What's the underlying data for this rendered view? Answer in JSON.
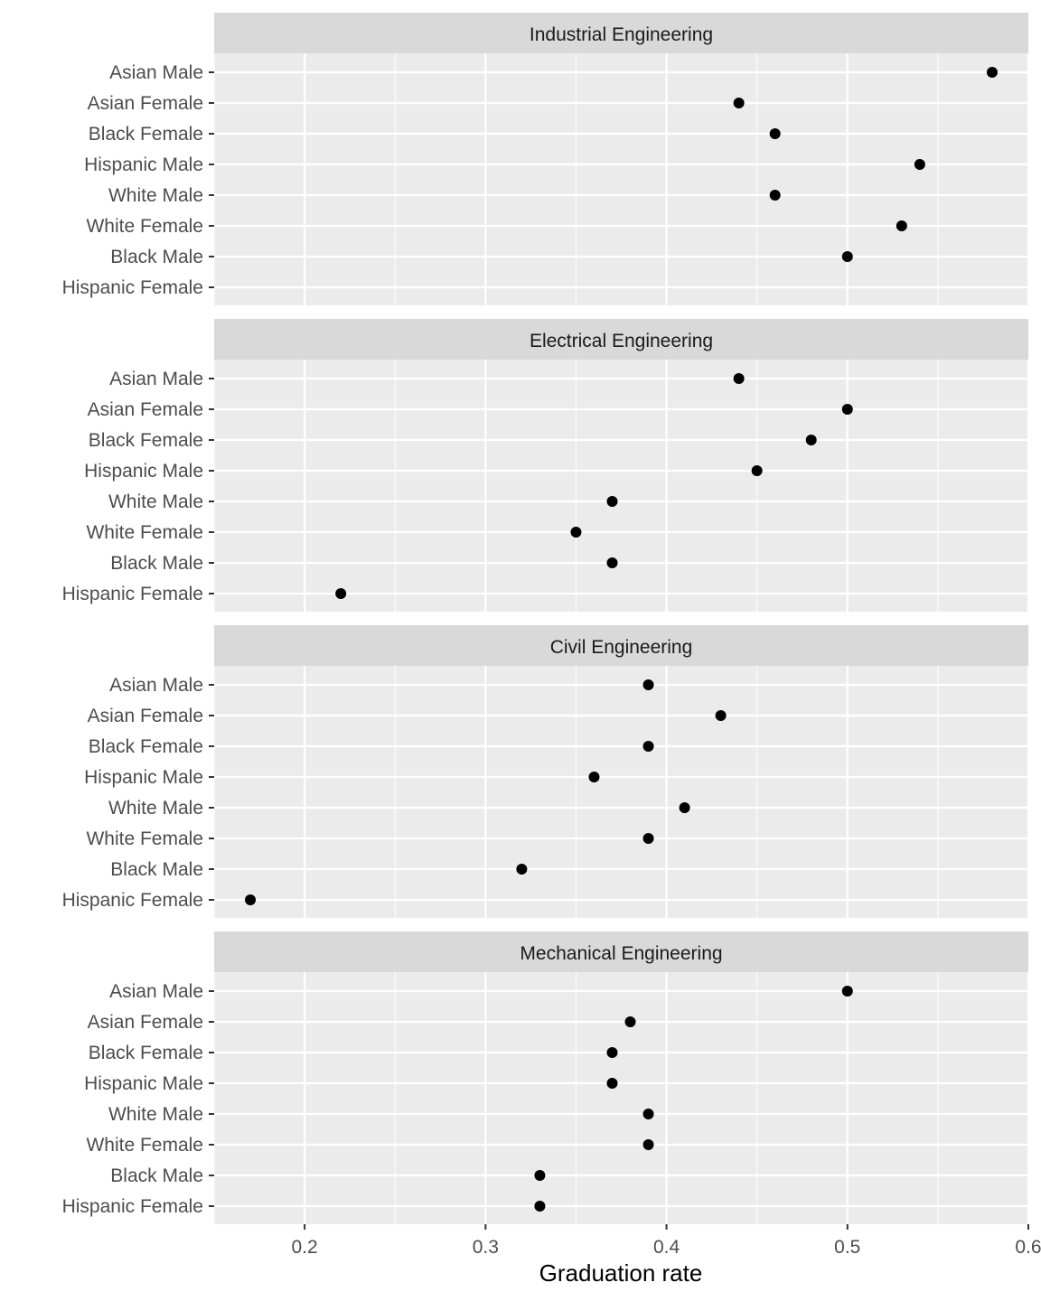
{
  "chart_data": {
    "type": "scatter",
    "xlabel": "Graduation rate",
    "xlim": [
      0.15,
      0.6
    ],
    "x_ticks": [
      0.2,
      0.3,
      0.4,
      0.5,
      0.6
    ],
    "x_tick_labels": [
      "0.2",
      "0.3",
      "0.4",
      "0.5",
      "0.6"
    ],
    "categories": [
      "Asian Male",
      "Asian Female",
      "Black Female",
      "Hispanic Male",
      "White Male",
      "White Female",
      "Black Male",
      "Hispanic Female"
    ],
    "point_color": "#000000",
    "panel_background": "#ebebeb",
    "strip_background": "#d9d9d9",
    "grid": true,
    "legend": "none",
    "panels": [
      {
        "title": "Industrial Engineering",
        "values": [
          0.58,
          0.44,
          0.46,
          0.54,
          0.46,
          0.53,
          0.5,
          null
        ]
      },
      {
        "title": "Electrical Engineering",
        "values": [
          0.44,
          0.5,
          0.48,
          0.45,
          0.37,
          0.35,
          0.37,
          0.22
        ]
      },
      {
        "title": "Civil Engineering",
        "values": [
          0.39,
          0.43,
          0.39,
          0.36,
          0.41,
          0.39,
          0.32,
          0.17
        ]
      },
      {
        "title": "Mechanical Engineering",
        "values": [
          0.5,
          0.38,
          0.37,
          0.37,
          0.39,
          0.39,
          0.33,
          0.33
        ]
      }
    ]
  }
}
